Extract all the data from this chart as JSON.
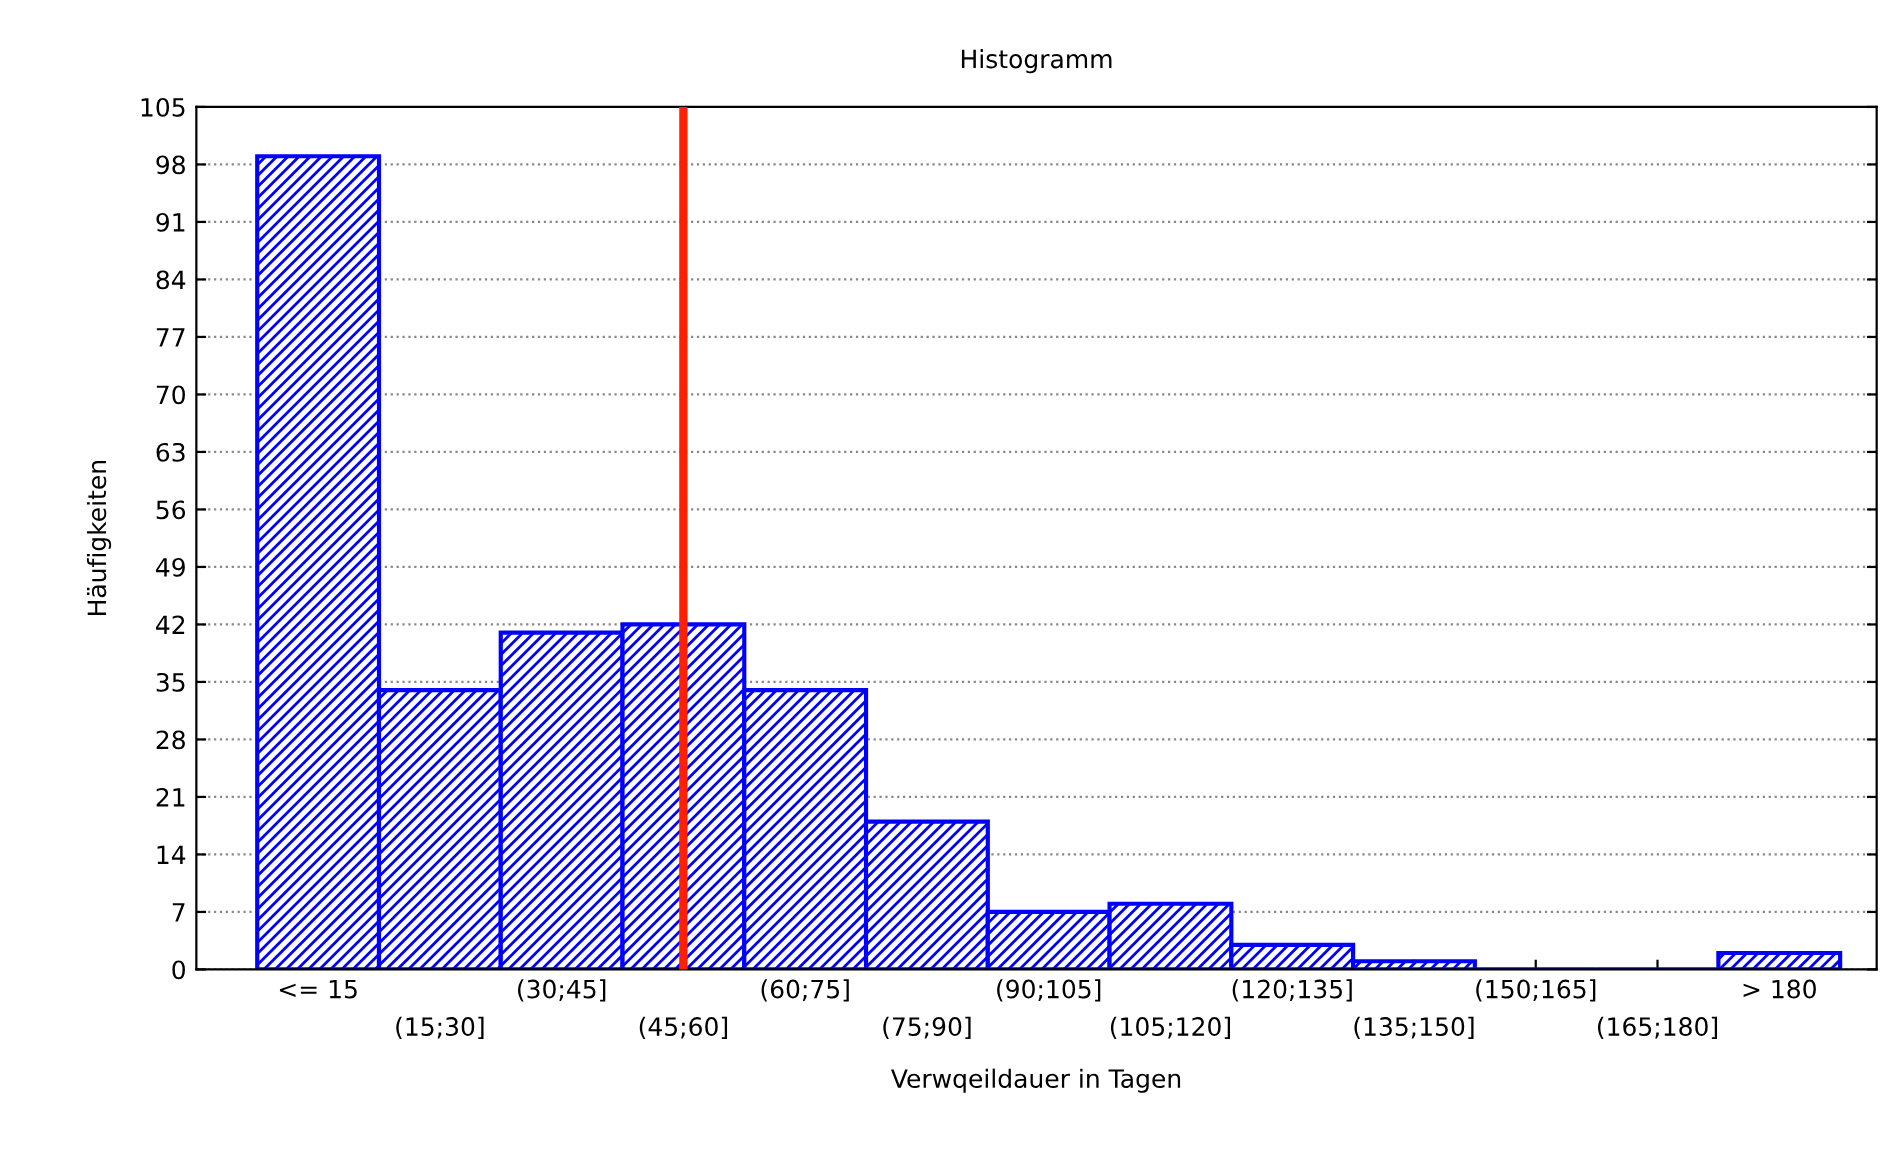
{
  "chart_data": {
    "type": "bar",
    "title": "Histogramm",
    "xlabel": "Verwqeildauer in Tagen",
    "ylabel": "Häufigkeiten",
    "categories": [
      "<= 15",
      "(15;30]",
      "(30;45]",
      "(45;60]",
      "(60;75]",
      "(75;90]",
      "(90;105]",
      "(105;120]",
      "(120;135]",
      "(135;150]",
      "(150;165]",
      "(165;180]",
      "> 180"
    ],
    "values": [
      99,
      34,
      41,
      42,
      34,
      18,
      7,
      8,
      3,
      1,
      0,
      0,
      2
    ],
    "color": "#0000ff",
    "ylim": [
      0,
      105
    ],
    "yticks": [
      0,
      7,
      14,
      21,
      28,
      35,
      42,
      49,
      56,
      63,
      70,
      77,
      84,
      91,
      98,
      105
    ],
    "grid": "y",
    "ref_lines": [
      {
        "axis": "x",
        "value": "(45;60]",
        "color": "#ff2000"
      }
    ]
  }
}
